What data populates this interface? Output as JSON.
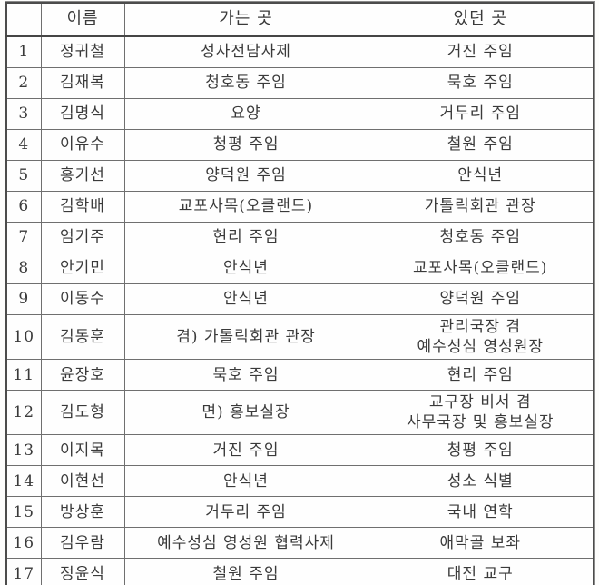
{
  "table": {
    "headers": [
      "",
      "이름",
      "가는 곳",
      "있던 곳"
    ],
    "rows": [
      {
        "no": "1",
        "name": "정귀철",
        "destination": "성사전담사제",
        "origin": "거진 주임"
      },
      {
        "no": "2",
        "name": "김재복",
        "destination": "청호동 주임",
        "origin": "묵호 주임"
      },
      {
        "no": "3",
        "name": "김명식",
        "destination": "요양",
        "origin": "거두리 주임"
      },
      {
        "no": "4",
        "name": "이유수",
        "destination": "청평 주임",
        "origin": "철원 주임"
      },
      {
        "no": "5",
        "name": "홍기선",
        "destination": "양덕원 주임",
        "origin": "안식년"
      },
      {
        "no": "6",
        "name": "김학배",
        "destination": "교포사목(오클랜드)",
        "origin": "가톨릭회관 관장"
      },
      {
        "no": "7",
        "name": "엄기주",
        "destination": "현리 주임",
        "origin": "청호동 주임"
      },
      {
        "no": "8",
        "name": "안기민",
        "destination": "안식년",
        "origin": "교포사목(오클랜드)"
      },
      {
        "no": "9",
        "name": "이동수",
        "destination": "안식년",
        "origin": "양덕원 주임"
      },
      {
        "no": "10",
        "name": "김동훈",
        "destination": "겸) 가톨릭회관 관장",
        "origin": "관리국장 겸\n예수성심 영성원장"
      },
      {
        "no": "11",
        "name": "윤장호",
        "destination": "묵호 주임",
        "origin": "현리 주임"
      },
      {
        "no": "12",
        "name": "김도형",
        "destination": "면) 홍보실장",
        "origin": "교구장 비서 겸\n사무국장 및 홍보실장"
      },
      {
        "no": "13",
        "name": "이지목",
        "destination": "거진 주임",
        "origin": "청평 주임"
      },
      {
        "no": "14",
        "name": "이현선",
        "destination": "안식년",
        "origin": "성소 식별"
      },
      {
        "no": "15",
        "name": "방상훈",
        "destination": "거두리 주임",
        "origin": "국내 연학"
      },
      {
        "no": "16",
        "name": "김우람",
        "destination": "예수성심 영성원 협력사제",
        "origin": "애막골 보좌"
      },
      {
        "no": "17",
        "name": "정윤식",
        "destination": "철원 주임",
        "origin": "대전 교구"
      }
    ]
  }
}
